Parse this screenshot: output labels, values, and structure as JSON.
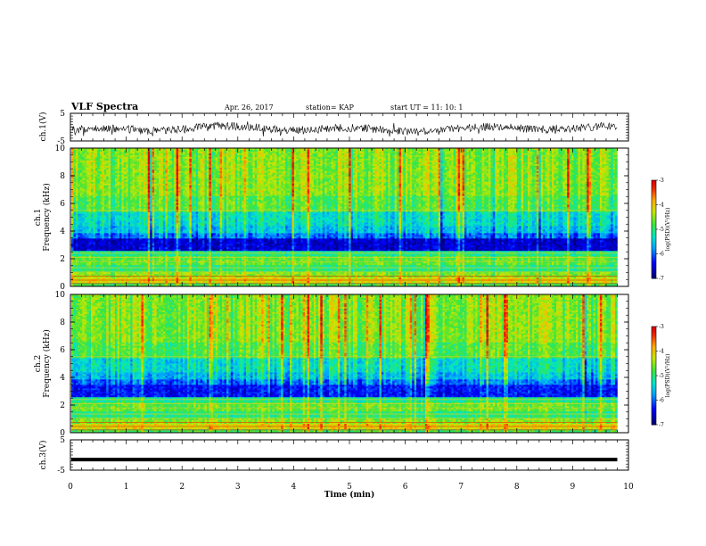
{
  "header": {
    "title": "VLF Spectra",
    "date": "Apr. 26, 2017",
    "station": "station= KAP",
    "start_ut": "start UT =  11: 10: 1"
  },
  "chart_data": [
    {
      "type": "line",
      "panel": "ch1-waveform",
      "ylabel": "ch.1(V)",
      "ylim": [
        -5,
        5
      ],
      "yticks": [
        "5",
        "-5"
      ],
      "xlim": [
        0,
        10
      ],
      "series": [
        {
          "note_only": true,
          "values": [
            0.6,
            0.2,
            0.8,
            0.4,
            0.9,
            0.1,
            0.5,
            0.7,
            0.3,
            0.6,
            0.8,
            0.2,
            0.9,
            0.4,
            0.5,
            0.3,
            0.7,
            0.6,
            0.1,
            0.8
          ]
        }
      ]
    },
    {
      "type": "heatmap",
      "panel": "ch1-spectrogram",
      "ylabel": "ch.1\nFrequency (kHz)",
      "ylim": [
        0,
        10
      ],
      "yticks": [
        "0",
        "2",
        "4",
        "6",
        "8",
        "10"
      ],
      "xlim": [
        0,
        9.8
      ],
      "colorbar": {
        "label": "log(PSD)(V²/Hz)",
        "range": [
          -7,
          -3
        ],
        "ticks": [
          "-3",
          "-4",
          "-5",
          "-6",
          "-7"
        ]
      }
    },
    {
      "type": "heatmap",
      "panel": "ch2-spectrogram",
      "ylabel": "ch.2\nFrequency (kHz)",
      "ylim": [
        0,
        10
      ],
      "yticks": [
        "0",
        "2",
        "4",
        "6",
        "8",
        "10"
      ],
      "xlim": [
        0,
        9.8
      ],
      "colorbar": {
        "label": "log(PSD)(V²/Hz)",
        "range": [
          -7,
          -3
        ],
        "ticks": [
          "-3",
          "-4",
          "-5",
          "-6",
          "-7"
        ]
      }
    },
    {
      "type": "line",
      "panel": "ch3-waveform",
      "ylabel": "ch.3(V)",
      "ylim": [
        -5,
        5
      ],
      "yticks": [
        "5",
        "-5"
      ],
      "xlim": [
        0,
        10
      ],
      "series": [
        {
          "values_constant": -1.5
        }
      ]
    }
  ],
  "xaxis": {
    "label": "Time (min)",
    "ticks": [
      "0",
      "1",
      "2",
      "3",
      "4",
      "5",
      "6",
      "7",
      "8",
      "9",
      "10"
    ]
  },
  "colors": {
    "background": "#ffffff",
    "line": "#000000"
  }
}
